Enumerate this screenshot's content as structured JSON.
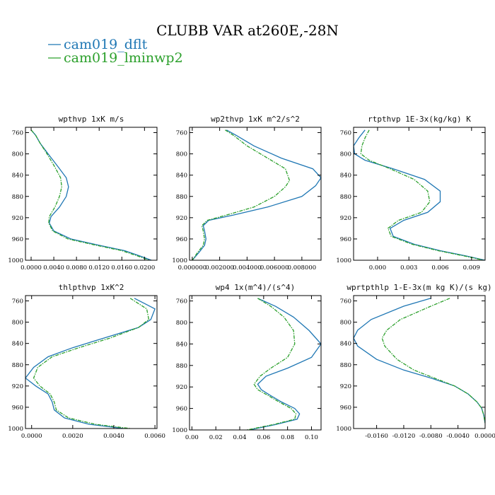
{
  "figure": {
    "title": "CLUBB VAR at260E,-28N",
    "legend": [
      {
        "name": "cam019_dflt",
        "color": "#1f77b4"
      },
      {
        "name": "cam019_lminwp2",
        "color": "#2ca02c"
      }
    ]
  },
  "chart_data": [
    {
      "type": "line",
      "title": "wpthvp  1xK m/s",
      "xlim": [
        -0.001,
        0.0222
      ],
      "xticks": [
        0.0,
        0.004,
        0.008,
        0.012,
        0.016,
        0.02
      ],
      "xtick_labels": [
        "0.0000",
        "0.0040",
        "0.0080",
        "0.0120",
        "0.0160",
        "0.0200"
      ],
      "ylim": [
        1000,
        750
      ],
      "yticks": [
        760,
        800,
        840,
        880,
        920,
        960,
        1000
      ],
      "ytick_labels": [
        "760",
        "800",
        "840",
        "880",
        "920",
        "960",
        "1000"
      ],
      "series": [
        {
          "name": "cam019_dflt",
          "color": "#1f77b4",
          "dashed": false,
          "x": [
            0.0,
            0.0008,
            0.0016,
            0.003,
            0.0048,
            0.0062,
            0.0066,
            0.0062,
            0.005,
            0.0035,
            0.0032,
            0.004,
            0.007,
            0.012,
            0.0165,
            0.0192,
            0.0212
          ],
          "y": [
            755,
            765,
            780,
            800,
            825,
            845,
            862,
            880,
            900,
            918,
            930,
            945,
            960,
            972,
            982,
            992,
            1000
          ]
        },
        {
          "name": "cam019_lminwp2",
          "color": "#2ca02c",
          "dashed": true,
          "x": [
            0.0,
            0.0008,
            0.0016,
            0.0028,
            0.0042,
            0.0052,
            0.0054,
            0.005,
            0.0042,
            0.0032,
            0.0031,
            0.0038,
            0.0065,
            0.0115,
            0.016,
            0.0188,
            0.0208
          ],
          "y": [
            755,
            765,
            780,
            800,
            825,
            845,
            862,
            880,
            900,
            918,
            930,
            945,
            960,
            972,
            982,
            992,
            1000
          ]
        }
      ]
    },
    {
      "type": "line",
      "title": "wp2thvp  1xK m^2/s^2",
      "xlim": [
        -0.0002,
        0.0094
      ],
      "xticks": [
        0.0,
        0.002,
        0.004,
        0.006,
        0.008
      ],
      "xtick_labels": [
        "0.000000",
        "0.002000",
        "0.004000",
        "0.006000",
        "0.008000"
      ],
      "ylim": [
        1000,
        750
      ],
      "yticks": [
        760,
        800,
        840,
        880,
        920,
        960,
        1000
      ],
      "ytick_labels": [
        "760",
        "800",
        "840",
        "880",
        "920",
        "960",
        "1000"
      ],
      "series": [
        {
          "name": "cam019_dflt",
          "color": "#1f77b4",
          "dashed": false,
          "x": [
            0.0025,
            0.0032,
            0.0045,
            0.0065,
            0.0088,
            0.0094,
            0.009,
            0.008,
            0.0055,
            0.003,
            0.0012,
            0.0008,
            0.0009,
            0.001,
            0.0009,
            0.0005,
            0.0
          ],
          "y": [
            755,
            765,
            785,
            808,
            828,
            845,
            860,
            880,
            900,
            915,
            925,
            935,
            945,
            960,
            972,
            985,
            1000
          ]
        },
        {
          "name": "cam019_lminwp2",
          "color": "#2ca02c",
          "dashed": true,
          "x": [
            0.0024,
            0.003,
            0.004,
            0.0055,
            0.0068,
            0.0071,
            0.0068,
            0.006,
            0.0045,
            0.0025,
            0.0011,
            0.0007,
            0.0008,
            0.0009,
            0.0008,
            0.0004,
            0.0
          ],
          "y": [
            755,
            765,
            785,
            808,
            828,
            850,
            862,
            880,
            900,
            915,
            925,
            935,
            945,
            960,
            972,
            985,
            1000
          ]
        }
      ]
    },
    {
      "type": "line",
      "title": "rtpthvp  1E-3x(kg/kg) K",
      "xlim": [
        -0.0023,
        0.0103
      ],
      "xticks": [
        0.0,
        0.003,
        0.006,
        0.009
      ],
      "xtick_labels": [
        "0.000",
        "0.003",
        "0.006",
        "0.009"
      ],
      "ylim": [
        1000,
        750
      ],
      "yticks": [
        760,
        800,
        840,
        880,
        920,
        960,
        1000
      ],
      "ytick_labels": [
        "760",
        "800",
        "840",
        "880",
        "920",
        "960",
        "1000"
      ],
      "series": [
        {
          "name": "cam019_dflt",
          "color": "#1f77b4",
          "dashed": false,
          "x": [
            -0.0012,
            -0.0018,
            -0.0023,
            -0.0022,
            -0.0012,
            0.0015,
            0.0045,
            0.006,
            0.006,
            0.0048,
            0.0025,
            0.0012,
            0.0015,
            0.0035,
            0.006,
            0.0085,
            0.0103
          ],
          "y": [
            755,
            770,
            785,
            800,
            812,
            828,
            848,
            870,
            890,
            910,
            925,
            940,
            955,
            970,
            982,
            992,
            1000
          ]
        },
        {
          "name": "cam019_lminwp2",
          "color": "#2ca02c",
          "dashed": true,
          "x": [
            -0.0008,
            -0.0012,
            -0.0015,
            -0.0016,
            -0.0008,
            0.0012,
            0.0035,
            0.0048,
            0.005,
            0.0042,
            0.002,
            0.001,
            0.0013,
            0.0033,
            0.0058,
            0.0083,
            0.0102
          ],
          "y": [
            755,
            770,
            785,
            800,
            812,
            828,
            848,
            870,
            890,
            910,
            925,
            940,
            955,
            970,
            982,
            992,
            1000
          ]
        }
      ]
    },
    {
      "type": "line",
      "title": "thlpthvp  1xK^2",
      "xlim": [
        -0.0003,
        0.0061
      ],
      "xticks": [
        0.0,
        0.002,
        0.004,
        0.006
      ],
      "xtick_labels": [
        "0.0000",
        "0.0020",
        "0.0040",
        "0.0060"
      ],
      "ylim": [
        1000,
        750
      ],
      "yticks": [
        760,
        800,
        840,
        880,
        920,
        960,
        1000
      ],
      "ytick_labels": [
        "760",
        "800",
        "840",
        "880",
        "920",
        "960",
        "1000"
      ],
      "series": [
        {
          "name": "cam019_dflt",
          "color": "#1f77b4",
          "dashed": false,
          "x": [
            0.005,
            0.0055,
            0.006,
            0.0058,
            0.0052,
            0.0035,
            0.002,
            0.0008,
            0.0001,
            -0.0003,
            0.0002,
            0.0008,
            0.001,
            0.0011,
            0.0016,
            0.0028,
            0.0045
          ],
          "y": [
            755,
            765,
            775,
            795,
            810,
            830,
            848,
            865,
            885,
            905,
            920,
            935,
            950,
            965,
            980,
            992,
            1000
          ]
        },
        {
          "name": "cam019_lminwp2",
          "color": "#2ca02c",
          "dashed": true,
          "x": [
            0.0048,
            0.0052,
            0.0056,
            0.0057,
            0.0052,
            0.0038,
            0.0023,
            0.001,
            0.0003,
            0.0001,
            0.0004,
            0.0009,
            0.0011,
            0.0012,
            0.0018,
            0.0031,
            0.0048
          ],
          "y": [
            755,
            765,
            775,
            795,
            810,
            830,
            848,
            865,
            885,
            905,
            920,
            935,
            950,
            965,
            980,
            992,
            1000
          ]
        }
      ]
    },
    {
      "type": "line",
      "title": "wp4  1x(m^4)/(s^4)",
      "xlim": [
        -0.002,
        0.108
      ],
      "xticks": [
        0.0,
        0.02,
        0.04,
        0.06,
        0.08,
        0.1
      ],
      "xtick_labels": [
        "0.00",
        "0.02",
        "0.04",
        "0.06",
        "0.08",
        "0.10"
      ],
      "ylim": [
        1000,
        750
      ],
      "yticks": [
        760,
        800,
        840,
        880,
        920,
        960,
        1000
      ],
      "ytick_labels": [
        "760",
        "800",
        "840",
        "880",
        "920",
        "960",
        "1000"
      ],
      "series": [
        {
          "name": "cam019_dflt",
          "color": "#1f77b4",
          "dashed": false,
          "x": [
            0.055,
            0.07,
            0.085,
            0.098,
            0.108,
            0.1,
            0.08,
            0.062,
            0.055,
            0.058,
            0.065,
            0.075,
            0.086,
            0.09,
            0.088,
            0.07,
            0.048
          ],
          "y": [
            755,
            770,
            790,
            815,
            840,
            865,
            885,
            900,
            915,
            925,
            935,
            948,
            960,
            970,
            980,
            990,
            1000
          ]
        },
        {
          "name": "cam019_lminwp2",
          "color": "#2ca02c",
          "dashed": true,
          "x": [
            0.055,
            0.066,
            0.077,
            0.085,
            0.086,
            0.08,
            0.066,
            0.057,
            0.052,
            0.055,
            0.063,
            0.073,
            0.083,
            0.087,
            0.086,
            0.068,
            0.046
          ],
          "y": [
            755,
            770,
            790,
            815,
            840,
            865,
            885,
            900,
            915,
            925,
            935,
            948,
            960,
            970,
            980,
            990,
            1000
          ]
        }
      ]
    },
    {
      "type": "line",
      "title": "wprtpthlp  1-E-3x(m kg K)/(s kg)",
      "xlim": [
        -0.0194,
        0.0
      ],
      "xticks": [
        -0.016,
        -0.012,
        -0.008,
        -0.004,
        0.0
      ],
      "xtick_labels": [
        "-0.0160",
        "-0.0120",
        "-0.0080",
        "-0.0040",
        "0.0000"
      ],
      "ylim": [
        1000,
        750
      ],
      "yticks": [
        760,
        800,
        840,
        880,
        920,
        960,
        1000
      ],
      "ytick_labels": [
        "760",
        "800",
        "840",
        "880",
        "920",
        "960",
        "1000"
      ],
      "series": [
        {
          "name": "cam019_dflt",
          "color": "#1f77b4",
          "dashed": false,
          "x": [
            -0.008,
            -0.012,
            -0.0168,
            -0.0188,
            -0.0194,
            -0.0188,
            -0.016,
            -0.012,
            -0.008,
            -0.0045,
            -0.0025,
            -0.0012,
            -0.0005,
            -0.0002,
            0.0
          ],
          "y": [
            755,
            770,
            795,
            815,
            830,
            845,
            870,
            890,
            905,
            920,
            935,
            950,
            962,
            975,
            990
          ]
        },
        {
          "name": "cam019_lminwp2",
          "color": "#2ca02c",
          "dashed": true,
          "x": [
            -0.0052,
            -0.008,
            -0.0125,
            -0.0145,
            -0.0152,
            -0.0148,
            -0.013,
            -0.0105,
            -0.0075,
            -0.0045,
            -0.0025,
            -0.0012,
            -0.0005,
            -0.0002,
            0.0
          ],
          "y": [
            755,
            770,
            795,
            815,
            830,
            845,
            870,
            890,
            905,
            920,
            935,
            950,
            962,
            975,
            990
          ]
        }
      ]
    }
  ]
}
